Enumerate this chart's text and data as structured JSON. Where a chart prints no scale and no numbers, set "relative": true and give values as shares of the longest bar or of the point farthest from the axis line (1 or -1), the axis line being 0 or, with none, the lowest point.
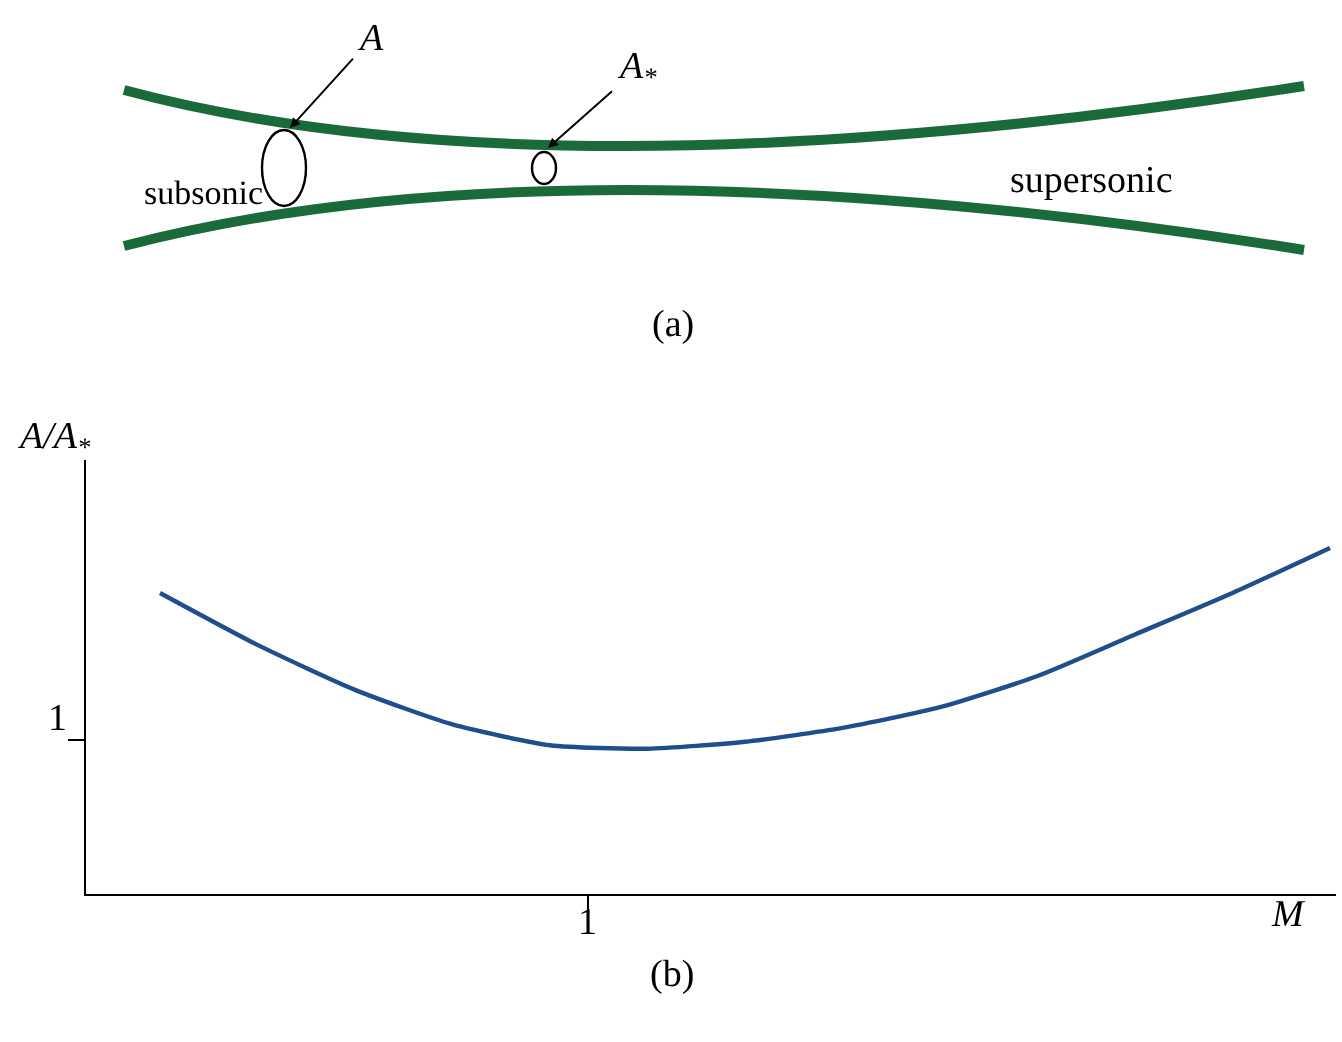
{
  "chart_data": {
    "type": "line",
    "relative": true,
    "xlabel": "M",
    "ylabel": "A/A$_{*}$",
    "annotations": [
      "A",
      "A$_{*}$",
      "subsonic",
      "supersonic",
      "(a)",
      "(b)",
      "1",
      "1"
    ],
    "categories": [
      null,
      null,
      null,
      null,
      null,
      null,
      null,
      null,
      null,
      null,
      null,
      null,
      null
    ],
    "series": [
      {
        "color": "#1f4e8c",
        "values": [
          0.87,
          0.72,
          0.59,
          0.49,
          0.43,
          0.42,
          0.44,
          0.48,
          0.54,
          0.63,
          0.75,
          0.87,
          1
        ]
      }
    ],
    "legend": false,
    "marker": "none",
    "line_style": "solid"
  }
}
